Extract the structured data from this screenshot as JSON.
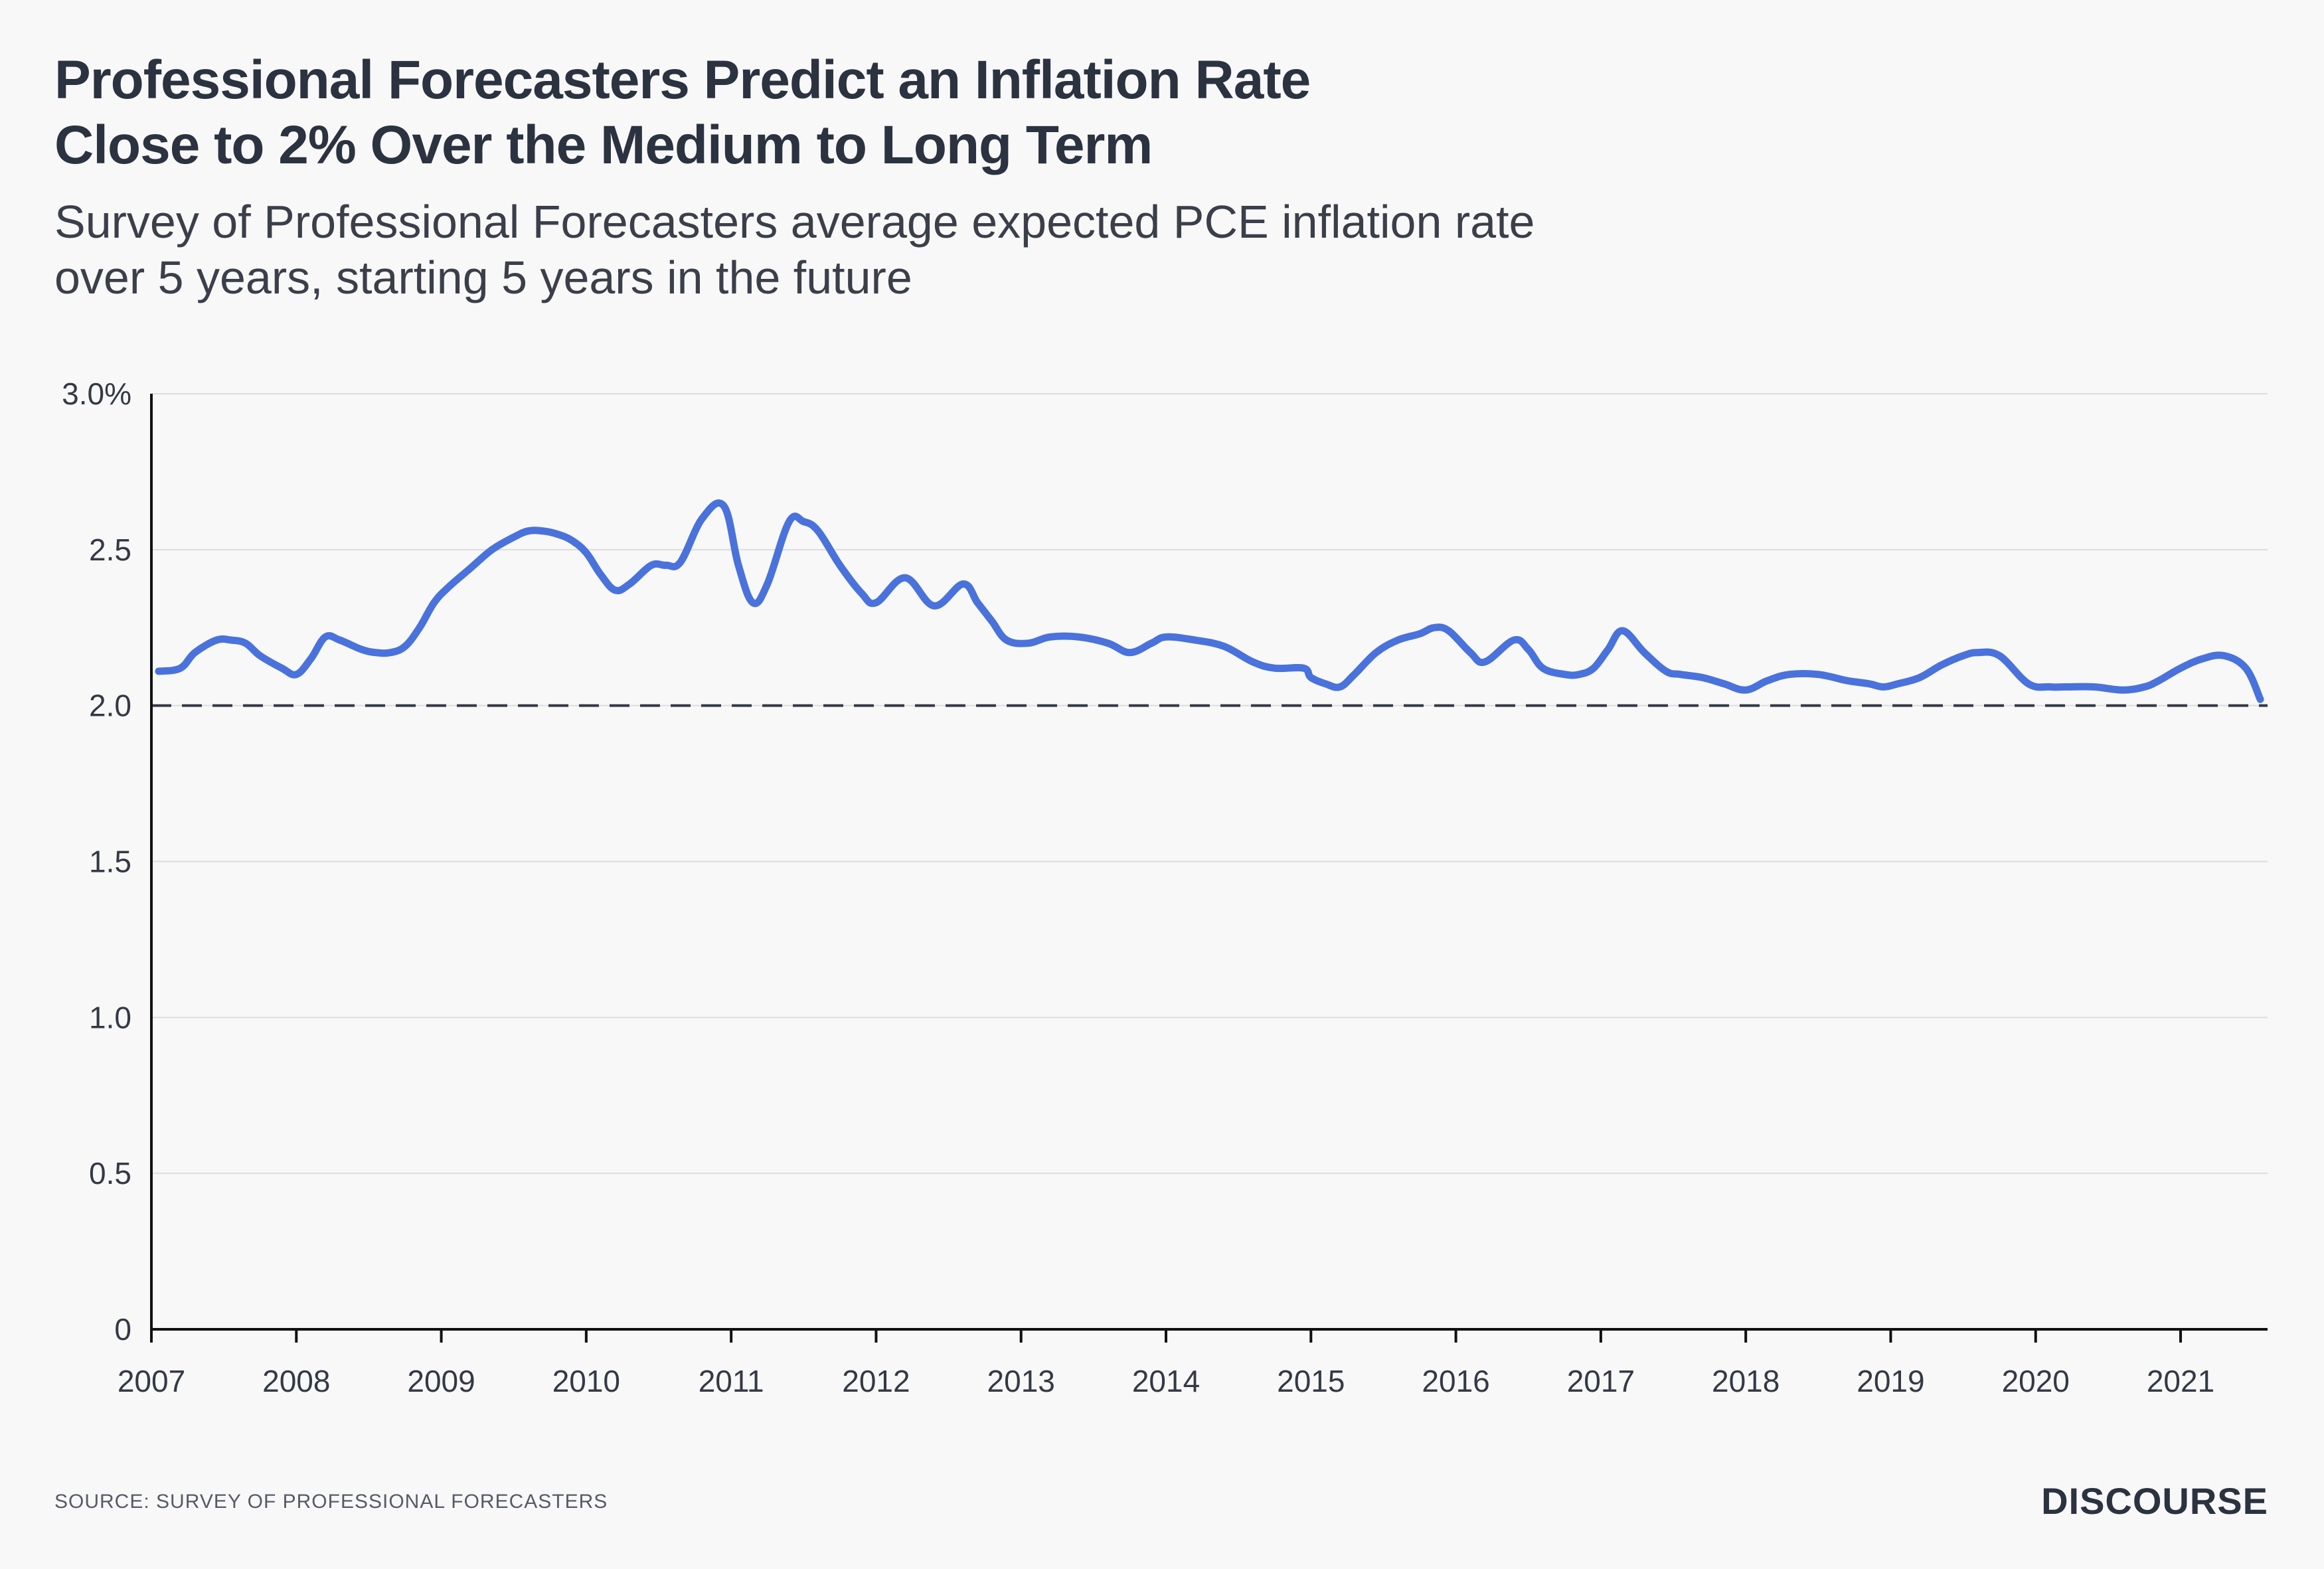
{
  "title_line1": "Professional Forecasters Predict an Inflation Rate",
  "title_line2": "Close to 2% Over the Medium to Long Term",
  "subtitle_line1": "Survey of Professional Forecasters average expected PCE inflation rate",
  "subtitle_line2": "over 5 years, starting 5 years in the future",
  "source": "SOURCE: SURVEY OF PROFESSIONAL FORECASTERS",
  "brand": "DISCOURSE",
  "colors": {
    "line": "#4a72dc",
    "reference": "#333a45",
    "grid": "#dddddd",
    "axis": "#111111",
    "background": "#f8f8f8"
  },
  "chart_data": {
    "type": "line",
    "title": "",
    "xlabel": "",
    "ylabel": "",
    "xlim": [
      2007,
      2021.6
    ],
    "ylim": [
      0,
      3.0
    ],
    "grid": true,
    "y_ticks": [
      {
        "value": 3.0,
        "label": "3.0%"
      },
      {
        "value": 2.5,
        "label": "2.5"
      },
      {
        "value": 2.0,
        "label": "2.0"
      },
      {
        "value": 1.5,
        "label": "1.5"
      },
      {
        "value": 1.0,
        "label": "1.0"
      },
      {
        "value": 0.5,
        "label": "0.5"
      },
      {
        "value": 0,
        "label": "0"
      }
    ],
    "x_ticks": [
      {
        "value": 2007,
        "label": "2007"
      },
      {
        "value": 2008,
        "label": "2008"
      },
      {
        "value": 2009,
        "label": "2009"
      },
      {
        "value": 2010,
        "label": "2010"
      },
      {
        "value": 2011,
        "label": "2011"
      },
      {
        "value": 2012,
        "label": "2012"
      },
      {
        "value": 2013,
        "label": "2013"
      },
      {
        "value": 2014,
        "label": "2014"
      },
      {
        "value": 2015,
        "label": "2015"
      },
      {
        "value": 2016,
        "label": "2016"
      },
      {
        "value": 2017,
        "label": "2017"
      },
      {
        "value": 2018,
        "label": "2018"
      },
      {
        "value": 2019,
        "label": "2019"
      },
      {
        "value": 2020,
        "label": "2020"
      },
      {
        "value": 2021,
        "label": "2021"
      }
    ],
    "reference_line": {
      "value": 2.0,
      "style": "dashed"
    },
    "series": [
      {
        "color": "#4a72dc",
        "x": [
          2007.05,
          2007.2,
          2007.3,
          2007.45,
          2007.55,
          2007.65,
          2007.75,
          2007.9,
          2008.0,
          2008.1,
          2008.2,
          2008.3,
          2008.45,
          2008.55,
          2008.65,
          2008.75,
          2008.85,
          2008.95,
          2009.05,
          2009.2,
          2009.35,
          2009.5,
          2009.6,
          2009.7,
          2009.8,
          2009.9,
          2010.0,
          2010.1,
          2010.2,
          2010.3,
          2010.45,
          2010.55,
          2010.65,
          2010.8,
          2010.95,
          2011.05,
          2011.15,
          2011.25,
          2011.4,
          2011.5,
          2011.6,
          2011.75,
          2011.9,
          2012.0,
          2012.2,
          2012.4,
          2012.6,
          2012.7,
          2012.8,
          2012.9,
          2013.05,
          2013.2,
          2013.4,
          2013.6,
          2013.75,
          2013.9,
          2014.0,
          2014.2,
          2014.4,
          2014.6,
          2014.75,
          2014.95,
          2015.0,
          2015.1,
          2015.2,
          2015.3,
          2015.45,
          2015.6,
          2015.75,
          2015.85,
          2015.95,
          2016.1,
          2016.2,
          2016.4,
          2016.5,
          2016.6,
          2016.75,
          2016.85,
          2016.95,
          2017.05,
          2017.15,
          2017.3,
          2017.45,
          2017.55,
          2017.7,
          2017.85,
          2018.0,
          2018.15,
          2018.3,
          2018.5,
          2018.7,
          2018.85,
          2018.95,
          2019.05,
          2019.2,
          2019.35,
          2019.5,
          2019.6,
          2019.75,
          2019.95,
          2020.1,
          2020.2,
          2020.4,
          2020.6,
          2020.75,
          2020.85,
          2021.0,
          2021.15,
          2021.3,
          2021.45,
          2021.55
        ],
        "y": [
          2.11,
          2.12,
          2.17,
          2.21,
          2.21,
          2.2,
          2.16,
          2.12,
          2.1,
          2.15,
          2.22,
          2.21,
          2.18,
          2.17,
          2.17,
          2.19,
          2.25,
          2.33,
          2.38,
          2.44,
          2.5,
          2.54,
          2.56,
          2.56,
          2.55,
          2.53,
          2.49,
          2.42,
          2.37,
          2.39,
          2.45,
          2.45,
          2.46,
          2.6,
          2.64,
          2.45,
          2.33,
          2.39,
          2.59,
          2.59,
          2.56,
          2.45,
          2.36,
          2.33,
          2.41,
          2.32,
          2.39,
          2.33,
          2.27,
          2.21,
          2.2,
          2.22,
          2.22,
          2.2,
          2.17,
          2.2,
          2.22,
          2.21,
          2.19,
          2.14,
          2.12,
          2.12,
          2.09,
          2.07,
          2.06,
          2.1,
          2.17,
          2.21,
          2.23,
          2.25,
          2.24,
          2.17,
          2.14,
          2.21,
          2.18,
          2.12,
          2.1,
          2.1,
          2.12,
          2.18,
          2.24,
          2.17,
          2.11,
          2.1,
          2.09,
          2.07,
          2.05,
          2.08,
          2.1,
          2.1,
          2.08,
          2.07,
          2.06,
          2.07,
          2.09,
          2.13,
          2.16,
          2.17,
          2.16,
          2.07,
          2.06,
          2.06,
          2.06,
          2.05,
          2.06,
          2.08,
          2.12,
          2.15,
          2.16,
          2.12,
          2.02
        ]
      }
    ]
  }
}
